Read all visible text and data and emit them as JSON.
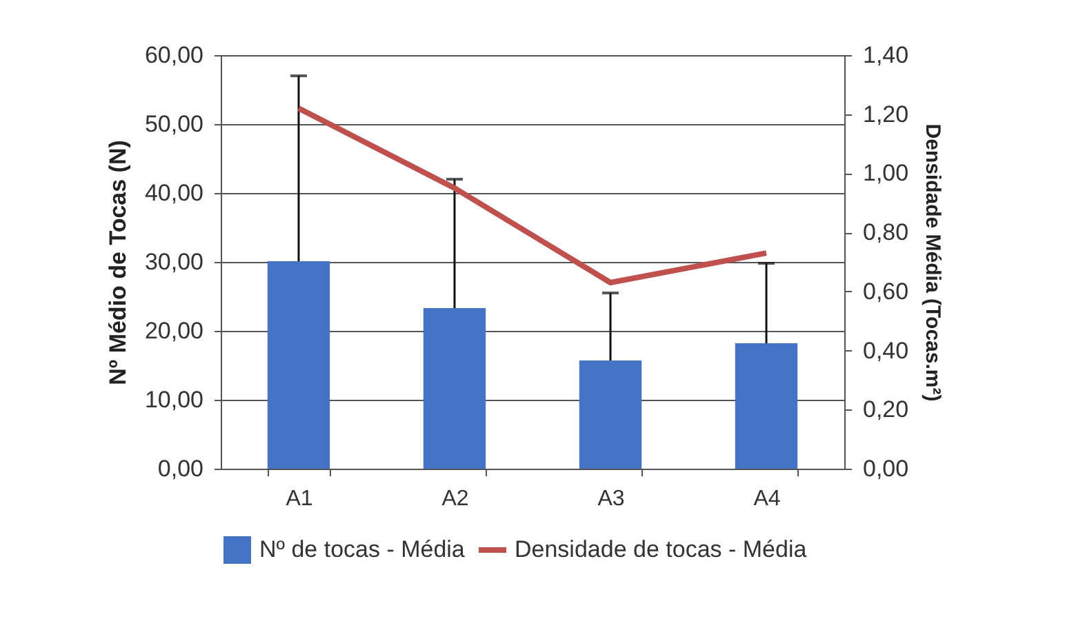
{
  "chart_data": {
    "type": "bar",
    "ylabel": "Nº Médio de Tocas (N)",
    "y2label": "Densidade Média (Tocas.m²)",
    "categories": [
      "A1",
      "A2",
      "A3",
      "A4"
    ],
    "series": [
      {
        "name": "Nº de tocas - Média",
        "color": "#4472c4",
        "values": [
          30.1,
          23.3,
          15.7,
          18.2
        ],
        "errors": [
          [
            30.1,
            57.0
          ],
          [
            23.3,
            42.0
          ],
          [
            15.7,
            25.5
          ],
          [
            18.2,
            29.8
          ]
        ]
      },
      {
        "name": "Densidade de tocas - Média",
        "type": "line",
        "axis": "y2",
        "color": "#c0504d",
        "values": [
          1.22,
          0.95,
          0.63,
          0.73
        ]
      }
    ],
    "ylim": [
      0,
      60
    ],
    "yticks": [
      {
        "value": 0,
        "label": "0,00"
      },
      {
        "value": 10,
        "label": "10,00"
      },
      {
        "value": 20,
        "label": "20,00"
      },
      {
        "value": 30,
        "label": "30,00"
      },
      {
        "value": 40,
        "label": "40,00"
      },
      {
        "value": 50,
        "label": "50,00"
      },
      {
        "value": 60,
        "label": "60,00"
      }
    ],
    "y2lim": [
      0,
      1.4
    ],
    "y2ticks": [
      {
        "value": 0,
        "label": "0,00"
      },
      {
        "value": 0.2,
        "label": "0,20"
      },
      {
        "value": 0.4,
        "label": "0,40"
      },
      {
        "value": 0.6,
        "label": "0,60"
      },
      {
        "value": 0.8,
        "label": "0,80"
      },
      {
        "value": 1.0,
        "label": "1,00"
      },
      {
        "value": 1.2,
        "label": "1,20"
      },
      {
        "value": 1.4,
        "label": "1,40"
      }
    ],
    "grid": "y",
    "legend": "bottom"
  }
}
